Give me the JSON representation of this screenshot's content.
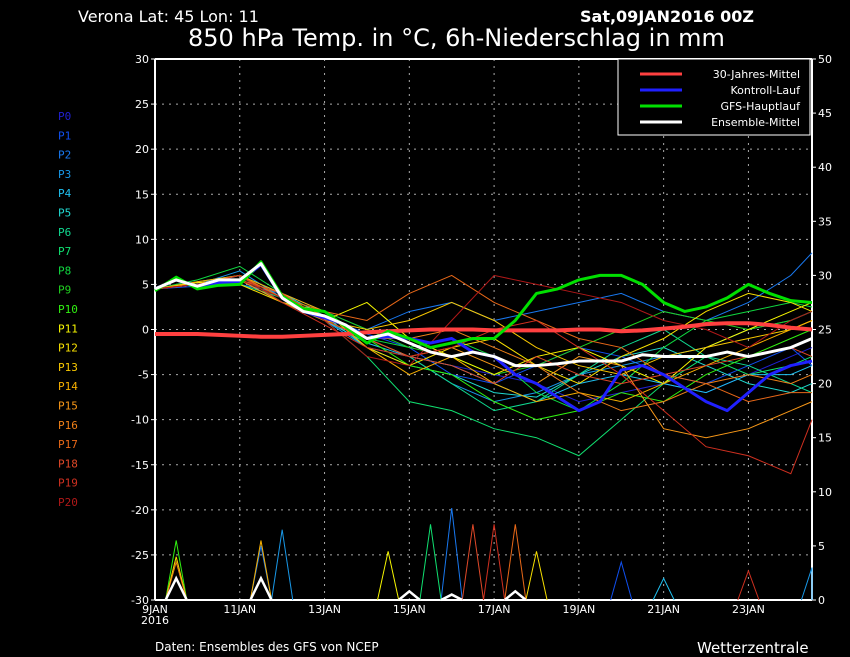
{
  "header": {
    "location": "Verona   Lat: 45  Lon: 11",
    "run": "Sat,09JAN2016 00Z",
    "title": "850 hPa Temp. in °C, 6h-Niederschlag in mm"
  },
  "footer": {
    "source": "Daten: Ensembles des GFS von NCEP",
    "brand": "Wetterzentrale"
  },
  "chart_data": {
    "type": "line",
    "title": "850 hPa Temp. in °C, 6h-Niederschlag in mm",
    "xlabel": "",
    "ylabel_left": "850 hPa Temp. (°C)",
    "ylabel_right": "6h-Niederschlag (mm)",
    "x_unit": "days since 09JAN2016 00Z",
    "xlim": [
      0,
      15.5
    ],
    "ylim": [
      -30,
      30
    ],
    "ylim_right": [
      0,
      50
    ],
    "y_ticks": [
      30,
      25,
      20,
      15,
      10,
      5,
      0,
      -5,
      -10,
      -15,
      -20,
      -25,
      -30
    ],
    "y_ticks_right": [
      50,
      45,
      40,
      35,
      30,
      25,
      20,
      15,
      10,
      5,
      0
    ],
    "x_ticks": [
      {
        "day": 0,
        "label": "9JAN",
        "sub": "2016"
      },
      {
        "day": 2,
        "label": "11JAN"
      },
      {
        "day": 4,
        "label": "13JAN"
      },
      {
        "day": 6,
        "label": "15JAN"
      },
      {
        "day": 8,
        "label": "17JAN"
      },
      {
        "day": 10,
        "label": "19JAN"
      },
      {
        "day": 12,
        "label": "21JAN"
      },
      {
        "day": 14,
        "label": "23JAN"
      }
    ],
    "grid": true,
    "legend_position": "top-right",
    "main_x": [
      0,
      0.5,
      1,
      1.5,
      2,
      2.5,
      3,
      3.5,
      4,
      4.5,
      5,
      5.5,
      6,
      6.5,
      7,
      7.5,
      8,
      8.5,
      9,
      9.5,
      10,
      10.5,
      11,
      11.5,
      12,
      12.5,
      13,
      13.5,
      14,
      14.5,
      15,
      15.5
    ],
    "main_series": [
      {
        "name": "30-Jahres-Mittel",
        "color": "#ff4040",
        "width": 4,
        "values": [
          -0.5,
          -0.5,
          -0.5,
          -0.6,
          -0.7,
          -0.8,
          -0.8,
          -0.7,
          -0.6,
          -0.5,
          -0.3,
          -0.2,
          -0.1,
          0,
          0,
          0,
          -0.1,
          -0.1,
          -0.1,
          -0.1,
          0,
          0,
          -0.2,
          -0.1,
          0.1,
          0.3,
          0.6,
          0.7,
          0.7,
          0.5,
          0.2,
          0
        ]
      },
      {
        "name": "Kontroll-Lauf",
        "color": "#2020ff",
        "width": 3,
        "values": [
          4.5,
          5.5,
          4.8,
          5.2,
          5.3,
          7.2,
          3.5,
          2,
          1.3,
          0.5,
          -1,
          -0.8,
          -1,
          -1.5,
          -1,
          -2.5,
          -3,
          -5,
          -6,
          -7.5,
          -9,
          -8,
          -4.5,
          -4,
          -5,
          -6.5,
          -8,
          -9,
          -7,
          -5,
          -4,
          -3.5
        ]
      },
      {
        "name": "GFS-Hauptlauf",
        "color": "#00e000",
        "width": 3,
        "values": [
          4.3,
          5.8,
          4.5,
          4.9,
          5,
          7.5,
          3.7,
          2.3,
          2,
          0.3,
          -1.5,
          -0.2,
          -1,
          -2,
          -1.5,
          -1,
          -1,
          1,
          4,
          4.5,
          5.5,
          6,
          6,
          5,
          3,
          2,
          2.5,
          3.5,
          5,
          4,
          3.2,
          3
        ]
      },
      {
        "name": "Ensemble-Mittel",
        "color": "#ffffff",
        "width": 3,
        "values": [
          4.5,
          5.5,
          4.8,
          5.5,
          5.5,
          7.3,
          3.5,
          2,
          1.5,
          0.5,
          -1,
          -0.5,
          -1.5,
          -2.5,
          -3,
          -2.5,
          -3,
          -4,
          -4,
          -3.8,
          -3.5,
          -3.5,
          -3.5,
          -2.8,
          -3,
          -3,
          -3,
          -2.5,
          -3,
          -2.5,
          -2,
          -1
        ]
      }
    ],
    "mean_precip": [
      [
        0.5,
        2
      ],
      [
        2.5,
        2
      ],
      [
        6,
        0.8
      ],
      [
        7,
        0.5
      ],
      [
        8.5,
        0.8
      ]
    ],
    "member_x": [
      0,
      1,
      2,
      3,
      4,
      5,
      6,
      7,
      8,
      9,
      10,
      11,
      12,
      13,
      14,
      15,
      15.5
    ],
    "members": [
      {
        "name": "P0",
        "color": "#2020d0",
        "values": [
          4.5,
          5,
          5.5,
          3.5,
          1,
          -1,
          -3,
          -4,
          -5,
          -6,
          -8,
          -7,
          -6,
          -7,
          -5,
          -3,
          -2
        ],
        "precip": []
      },
      {
        "name": "P1",
        "color": "#1050f0",
        "values": [
          4.5,
          4.8,
          6,
          3,
          1.5,
          -0.5,
          -2,
          -5,
          -6,
          -4,
          -2,
          -3,
          -5,
          -6,
          -4,
          -2,
          -4
        ],
        "precip": [
          [
            11,
            3.5
          ]
        ]
      },
      {
        "name": "P2",
        "color": "#1878f0",
        "values": [
          4.5,
          5.2,
          5,
          4,
          2,
          0,
          2,
          3,
          1,
          2,
          3,
          4,
          2,
          1,
          3,
          6,
          8.5
        ],
        "precip": [
          [
            2.5,
            5
          ],
          [
            7,
            8.5
          ]
        ]
      },
      {
        "name": "P3",
        "color": "#1898e8",
        "values": [
          4.5,
          5,
          6.5,
          3.5,
          1,
          -2,
          -3,
          -6,
          -8,
          -7,
          -5,
          -4,
          -3,
          -2,
          0,
          1,
          2
        ],
        "precip": [
          [
            3,
            6.5
          ],
          [
            15.5,
            3
          ]
        ]
      },
      {
        "name": "P4",
        "color": "#20c0f0",
        "values": [
          4.5,
          5,
          5.5,
          3,
          1,
          -1.5,
          -3,
          -4,
          -6,
          -8,
          -6,
          -5,
          -6,
          -7,
          -5,
          -5,
          -4
        ],
        "precip": [
          [
            12,
            2
          ]
        ]
      },
      {
        "name": "P5",
        "color": "#20d8d0",
        "values": [
          4.5,
          5.3,
          6,
          4,
          1.5,
          -2,
          -4,
          -5,
          -7,
          -7.5,
          -5,
          -3,
          -2,
          -4,
          -6,
          -7,
          -6
        ],
        "precip": []
      },
      {
        "name": "P6",
        "color": "#10d890",
        "values": [
          4.5,
          5,
          5,
          3.5,
          2,
          -1,
          -3,
          -6,
          -9,
          -8,
          -5,
          -2,
          0,
          -3,
          -4,
          -6,
          -7
        ],
        "precip": []
      },
      {
        "name": "P7",
        "color": "#10e070",
        "values": [
          4.5,
          5,
          6,
          3,
          1,
          -3,
          -8,
          -9,
          -11,
          -12,
          -14,
          -10,
          -6,
          -3,
          -5,
          -4,
          -3
        ],
        "precip": [
          [
            6.5,
            7
          ]
        ]
      },
      {
        "name": "P8",
        "color": "#10d840",
        "values": [
          4.5,
          5.5,
          7,
          4,
          1,
          -1,
          -2,
          -1,
          -3,
          -7,
          -9,
          -6,
          -2,
          1,
          2,
          3,
          2.5
        ],
        "precip": []
      },
      {
        "name": "P9",
        "color": "#20d020",
        "values": [
          4.5,
          5,
          5.5,
          3.5,
          2,
          0,
          -2,
          -3,
          -5,
          -4,
          -2,
          0,
          2,
          1,
          0,
          1,
          2
        ],
        "precip": []
      },
      {
        "name": "P10",
        "color": "#30f010",
        "values": [
          4.5,
          5,
          6,
          3,
          1.5,
          -1,
          -4,
          -5,
          -8,
          -10,
          -9,
          -7,
          -8,
          -5,
          -3,
          -1,
          0
        ],
        "precip": [
          [
            0.5,
            5.5
          ]
        ]
      },
      {
        "name": "P11",
        "color": "#f8f800",
        "values": [
          4.5,
          5.2,
          5.5,
          4,
          1,
          3,
          -1,
          -3,
          -5,
          -3,
          -2,
          -4,
          -6,
          -2,
          0,
          2,
          3
        ],
        "precip": [
          [
            5.5,
            4.5
          ]
        ]
      },
      {
        "name": "P12",
        "color": "#f8e000",
        "values": [
          4.5,
          5,
          5,
          3,
          2,
          -2,
          -4,
          -2,
          -1,
          -4,
          -6,
          -3,
          -1,
          2,
          4,
          3,
          2
        ],
        "precip": [
          [
            0.5,
            4
          ],
          [
            9,
            4.5
          ]
        ]
      },
      {
        "name": "P13",
        "color": "#f8c800",
        "values": [
          4.5,
          5,
          6,
          3.5,
          1,
          0,
          1,
          3,
          1,
          -2,
          -4,
          -5,
          -3,
          -2,
          -1,
          0,
          1
        ],
        "precip": []
      },
      {
        "name": "P14",
        "color": "#f8b000",
        "values": [
          4.5,
          5.3,
          6,
          4,
          2,
          -2,
          -5,
          -3,
          -6,
          -8,
          -7,
          -8,
          -6,
          -4,
          -2,
          0,
          1
        ],
        "precip": [
          [
            2.5,
            5.5
          ]
        ]
      },
      {
        "name": "P15",
        "color": "#f89818",
        "values": [
          4.5,
          5,
          5.5,
          3,
          1,
          -1,
          -3,
          -2,
          -4,
          -6,
          -3,
          -4,
          -11,
          -12,
          -11,
          -9,
          -8
        ],
        "precip": []
      },
      {
        "name": "P16",
        "color": "#f08018",
        "values": [
          4.5,
          5,
          6,
          3.5,
          1.5,
          -1,
          -1,
          0,
          -2,
          -4,
          -7,
          -9,
          -8,
          -6,
          -5,
          -6,
          -5
        ],
        "precip": [
          [
            0.5,
            3.5
          ]
        ]
      },
      {
        "name": "P17",
        "color": "#e86818",
        "values": [
          4.5,
          5,
          6,
          3.5,
          2,
          1,
          4,
          6,
          3,
          1,
          -1,
          -2,
          -5,
          -6,
          -8,
          -7,
          -7
        ],
        "precip": [
          [
            8.5,
            7
          ]
        ]
      },
      {
        "name": "P18",
        "color": "#e04828",
        "values": [
          4.5,
          5,
          5.5,
          4,
          1,
          -1,
          -3,
          -4,
          -6,
          -3,
          -5,
          -6,
          -5,
          -4,
          -3,
          -2,
          -3
        ],
        "precip": [
          [
            7.5,
            7
          ]
        ]
      },
      {
        "name": "P19",
        "color": "#d03020",
        "values": [
          4.5,
          5,
          6,
          3,
          0.5,
          -2,
          -3,
          -2,
          0,
          1,
          -2,
          -5,
          -9,
          -13,
          -14,
          -16,
          -10
        ],
        "precip": [
          [
            8,
            7
          ],
          [
            14,
            2.7
          ]
        ]
      },
      {
        "name": "P20",
        "color": "#b01818",
        "values": [
          4.5,
          5,
          5.5,
          3.5,
          1,
          -3,
          -4,
          1,
          6,
          5,
          4,
          3,
          1,
          0,
          -2,
          1,
          2
        ],
        "precip": []
      }
    ]
  }
}
